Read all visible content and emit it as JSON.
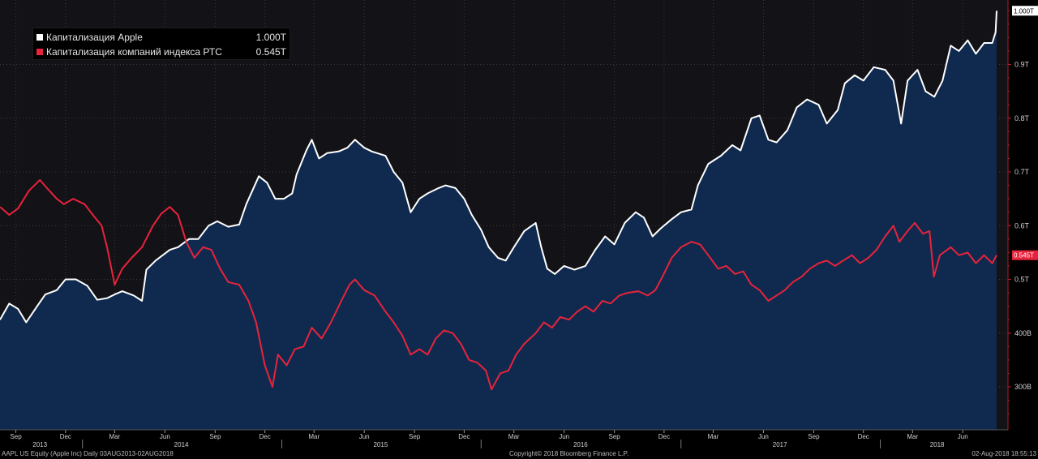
{
  "chart_data": {
    "type": "line",
    "title": "",
    "xlabel": "",
    "ylabel": "",
    "ylim": [
      220,
      1020
    ],
    "yticks": [
      {
        "value": 300,
        "label": "300B"
      },
      {
        "value": 400,
        "label": "400B"
      },
      {
        "value": 500,
        "label": "0.5T"
      },
      {
        "value": 600,
        "label": "0.6T"
      },
      {
        "value": 700,
        "label": "0.7T"
      },
      {
        "value": 800,
        "label": "0.8T"
      },
      {
        "value": 900,
        "label": "0.9T"
      }
    ],
    "xlim": [
      "2013-08-03",
      "2018-08-02"
    ],
    "month_ticks": [
      {
        "date": "2013-09-01",
        "label": "Sep"
      },
      {
        "date": "2013-12-01",
        "label": "Dec"
      },
      {
        "date": "2014-03-01",
        "label": "Mar"
      },
      {
        "date": "2014-06-01",
        "label": "Jun"
      },
      {
        "date": "2014-09-01",
        "label": "Sep"
      },
      {
        "date": "2014-12-01",
        "label": "Dec"
      },
      {
        "date": "2015-03-01",
        "label": "Mar"
      },
      {
        "date": "2015-06-01",
        "label": "Jun"
      },
      {
        "date": "2015-09-01",
        "label": "Sep"
      },
      {
        "date": "2015-12-01",
        "label": "Dec"
      },
      {
        "date": "2016-03-01",
        "label": "Mar"
      },
      {
        "date": "2016-06-01",
        "label": "Jun"
      },
      {
        "date": "2016-09-01",
        "label": "Sep"
      },
      {
        "date": "2016-12-01",
        "label": "Dec"
      },
      {
        "date": "2017-03-01",
        "label": "Mar"
      },
      {
        "date": "2017-06-01",
        "label": "Jun"
      },
      {
        "date": "2017-09-01",
        "label": "Sep"
      },
      {
        "date": "2017-12-01",
        "label": "Dec"
      },
      {
        "date": "2018-03-01",
        "label": "Mar"
      },
      {
        "date": "2018-06-01",
        "label": "Jun"
      }
    ],
    "year_ticks": [
      {
        "date": "2013-10-15",
        "label": "2013"
      },
      {
        "date": "2014-07-01",
        "label": "2014"
      },
      {
        "date": "2015-07-01",
        "label": "2015"
      },
      {
        "date": "2016-07-01",
        "label": "2016"
      },
      {
        "date": "2017-07-01",
        "label": "2017"
      },
      {
        "date": "2018-04-15",
        "label": "2018"
      }
    ],
    "grid": true,
    "legend_position": "top-left",
    "series": [
      {
        "name": "Капитализация Apple",
        "last_value_label": "1.000T",
        "color": "#ffffff",
        "area_color": "#0f2a4e",
        "points": [
          [
            "2013-08-03",
            425
          ],
          [
            "2013-08-20",
            455
          ],
          [
            "2013-09-05",
            445
          ],
          [
            "2013-09-20",
            420
          ],
          [
            "2013-10-10",
            450
          ],
          [
            "2013-10-25",
            472
          ],
          [
            "2013-11-15",
            480
          ],
          [
            "2013-12-01",
            500
          ],
          [
            "2013-12-20",
            500
          ],
          [
            "2014-01-10",
            488
          ],
          [
            "2014-01-28",
            462
          ],
          [
            "2014-02-15",
            465
          ],
          [
            "2014-03-01",
            472
          ],
          [
            "2014-03-15",
            478
          ],
          [
            "2014-04-05",
            470
          ],
          [
            "2014-04-20",
            460
          ],
          [
            "2014-04-28",
            518
          ],
          [
            "2014-05-15",
            535
          ],
          [
            "2014-06-10",
            555
          ],
          [
            "2014-06-25",
            560
          ],
          [
            "2014-07-15",
            575
          ],
          [
            "2014-08-01",
            575
          ],
          [
            "2014-08-20",
            600
          ],
          [
            "2014-09-05",
            608
          ],
          [
            "2014-09-25",
            598
          ],
          [
            "2014-10-15",
            602
          ],
          [
            "2014-10-28",
            640
          ],
          [
            "2014-11-20",
            692
          ],
          [
            "2014-12-05",
            680
          ],
          [
            "2014-12-20",
            650
          ],
          [
            "2015-01-05",
            650
          ],
          [
            "2015-01-20",
            660
          ],
          [
            "2015-01-28",
            695
          ],
          [
            "2015-02-15",
            740
          ],
          [
            "2015-02-25",
            760
          ],
          [
            "2015-03-10",
            725
          ],
          [
            "2015-03-25",
            735
          ],
          [
            "2015-04-15",
            738
          ],
          [
            "2015-05-01",
            745
          ],
          [
            "2015-05-15",
            760
          ],
          [
            "2015-06-01",
            745
          ],
          [
            "2015-06-15",
            738
          ],
          [
            "2015-07-10",
            730
          ],
          [
            "2015-07-25",
            700
          ],
          [
            "2015-08-10",
            680
          ],
          [
            "2015-08-25",
            625
          ],
          [
            "2015-09-10",
            650
          ],
          [
            "2015-09-25",
            660
          ],
          [
            "2015-10-15",
            670
          ],
          [
            "2015-10-28",
            675
          ],
          [
            "2015-11-15",
            670
          ],
          [
            "2015-12-01",
            650
          ],
          [
            "2015-12-15",
            620
          ],
          [
            "2016-01-01",
            592
          ],
          [
            "2016-01-15",
            560
          ],
          [
            "2016-02-01",
            540
          ],
          [
            "2016-02-15",
            535
          ],
          [
            "2016-03-01",
            560
          ],
          [
            "2016-03-20",
            590
          ],
          [
            "2016-04-10",
            605
          ],
          [
            "2016-04-20",
            560
          ],
          [
            "2016-05-01",
            520
          ],
          [
            "2016-05-15",
            510
          ],
          [
            "2016-06-01",
            525
          ],
          [
            "2016-06-20",
            518
          ],
          [
            "2016-07-10",
            525
          ],
          [
            "2016-07-28",
            555
          ],
          [
            "2016-08-15",
            580
          ],
          [
            "2016-09-01",
            565
          ],
          [
            "2016-09-20",
            605
          ],
          [
            "2016-10-10",
            625
          ],
          [
            "2016-10-25",
            615
          ],
          [
            "2016-11-10",
            580
          ],
          [
            "2016-11-25",
            595
          ],
          [
            "2016-12-15",
            612
          ],
          [
            "2017-01-01",
            625
          ],
          [
            "2017-01-20",
            630
          ],
          [
            "2017-02-01",
            675
          ],
          [
            "2017-02-20",
            715
          ],
          [
            "2017-03-15",
            730
          ],
          [
            "2017-04-05",
            750
          ],
          [
            "2017-04-20",
            740
          ],
          [
            "2017-05-10",
            800
          ],
          [
            "2017-05-25",
            805
          ],
          [
            "2017-06-10",
            760
          ],
          [
            "2017-06-25",
            755
          ],
          [
            "2017-07-15",
            778
          ],
          [
            "2017-08-01",
            820
          ],
          [
            "2017-08-20",
            835
          ],
          [
            "2017-09-10",
            825
          ],
          [
            "2017-09-25",
            790
          ],
          [
            "2017-10-15",
            815
          ],
          [
            "2017-10-28",
            865
          ],
          [
            "2017-11-15",
            880
          ],
          [
            "2017-12-01",
            870
          ],
          [
            "2017-12-20",
            895
          ],
          [
            "2018-01-10",
            890
          ],
          [
            "2018-01-25",
            870
          ],
          [
            "2018-02-08",
            790
          ],
          [
            "2018-02-20",
            870
          ],
          [
            "2018-03-10",
            890
          ],
          [
            "2018-03-25",
            850
          ],
          [
            "2018-04-10",
            840
          ],
          [
            "2018-04-25",
            870
          ],
          [
            "2018-05-10",
            935
          ],
          [
            "2018-05-25",
            925
          ],
          [
            "2018-06-10",
            945
          ],
          [
            "2018-06-25",
            920
          ],
          [
            "2018-07-10",
            940
          ],
          [
            "2018-07-25",
            940
          ],
          [
            "2018-07-31",
            960
          ],
          [
            "2018-08-02",
            1000
          ]
        ]
      },
      {
        "name": "Капитализация компаний индекса РТС",
        "last_value_label": "0.545T",
        "color": "#e8233c",
        "points": [
          [
            "2013-08-03",
            635
          ],
          [
            "2013-08-20",
            620
          ],
          [
            "2013-09-05",
            632
          ],
          [
            "2013-09-25",
            665
          ],
          [
            "2013-10-15",
            685
          ],
          [
            "2013-10-28",
            670
          ],
          [
            "2013-11-15",
            650
          ],
          [
            "2013-11-28",
            640
          ],
          [
            "2013-12-15",
            650
          ],
          [
            "2014-01-05",
            640
          ],
          [
            "2014-01-20",
            620
          ],
          [
            "2014-02-05",
            600
          ],
          [
            "2014-02-15",
            560
          ],
          [
            "2014-03-01",
            490
          ],
          [
            "2014-03-15",
            520
          ],
          [
            "2014-04-01",
            540
          ],
          [
            "2014-04-20",
            560
          ],
          [
            "2014-05-10",
            600
          ],
          [
            "2014-05-25",
            622
          ],
          [
            "2014-06-10",
            635
          ],
          [
            "2014-06-25",
            620
          ],
          [
            "2014-07-10",
            570
          ],
          [
            "2014-07-25",
            540
          ],
          [
            "2014-08-10",
            560
          ],
          [
            "2014-08-25",
            555
          ],
          [
            "2014-09-10",
            520
          ],
          [
            "2014-09-25",
            495
          ],
          [
            "2014-10-15",
            490
          ],
          [
            "2014-11-01",
            460
          ],
          [
            "2014-11-15",
            420
          ],
          [
            "2014-12-01",
            340
          ],
          [
            "2014-12-15",
            300
          ],
          [
            "2014-12-25",
            360
          ],
          [
            "2015-01-10",
            340
          ],
          [
            "2015-01-25",
            370
          ],
          [
            "2015-02-10",
            375
          ],
          [
            "2015-02-25",
            410
          ],
          [
            "2015-03-15",
            390
          ],
          [
            "2015-04-01",
            420
          ],
          [
            "2015-04-20",
            460
          ],
          [
            "2015-05-05",
            490
          ],
          [
            "2015-05-15",
            500
          ],
          [
            "2015-06-01",
            480
          ],
          [
            "2015-06-20",
            470
          ],
          [
            "2015-07-10",
            440
          ],
          [
            "2015-07-25",
            420
          ],
          [
            "2015-08-10",
            395
          ],
          [
            "2015-08-25",
            360
          ],
          [
            "2015-09-10",
            370
          ],
          [
            "2015-09-25",
            360
          ],
          [
            "2015-10-10",
            390
          ],
          [
            "2015-10-25",
            405
          ],
          [
            "2015-11-10",
            400
          ],
          [
            "2015-11-25",
            380
          ],
          [
            "2015-12-10",
            350
          ],
          [
            "2015-12-25",
            345
          ],
          [
            "2016-01-10",
            330
          ],
          [
            "2016-01-20",
            295
          ],
          [
            "2016-02-05",
            325
          ],
          [
            "2016-02-20",
            330
          ],
          [
            "2016-03-05",
            360
          ],
          [
            "2016-03-20",
            380
          ],
          [
            "2016-04-10",
            400
          ],
          [
            "2016-04-25",
            420
          ],
          [
            "2016-05-10",
            410
          ],
          [
            "2016-05-25",
            430
          ],
          [
            "2016-06-10",
            425
          ],
          [
            "2016-06-25",
            440
          ],
          [
            "2016-07-10",
            450
          ],
          [
            "2016-07-25",
            440
          ],
          [
            "2016-08-10",
            460
          ],
          [
            "2016-08-25",
            455
          ],
          [
            "2016-09-10",
            470
          ],
          [
            "2016-09-25",
            475
          ],
          [
            "2016-10-15",
            478
          ],
          [
            "2016-11-01",
            470
          ],
          [
            "2016-11-15",
            480
          ],
          [
            "2016-11-28",
            505
          ],
          [
            "2016-12-15",
            540
          ],
          [
            "2017-01-01",
            560
          ],
          [
            "2017-01-20",
            570
          ],
          [
            "2017-02-05",
            565
          ],
          [
            "2017-02-20",
            545
          ],
          [
            "2017-03-10",
            520
          ],
          [
            "2017-03-25",
            525
          ],
          [
            "2017-04-10",
            510
          ],
          [
            "2017-04-25",
            515
          ],
          [
            "2017-05-10",
            490
          ],
          [
            "2017-05-25",
            480
          ],
          [
            "2017-06-10",
            460
          ],
          [
            "2017-06-25",
            470
          ],
          [
            "2017-07-10",
            480
          ],
          [
            "2017-07-25",
            495
          ],
          [
            "2017-08-10",
            505
          ],
          [
            "2017-08-25",
            520
          ],
          [
            "2017-09-10",
            530
          ],
          [
            "2017-09-25",
            535
          ],
          [
            "2017-10-10",
            525
          ],
          [
            "2017-10-25",
            535
          ],
          [
            "2017-11-10",
            545
          ],
          [
            "2017-11-25",
            530
          ],
          [
            "2017-12-10",
            540
          ],
          [
            "2017-12-25",
            555
          ],
          [
            "2018-01-10",
            580
          ],
          [
            "2018-01-25",
            600
          ],
          [
            "2018-02-05",
            570
          ],
          [
            "2018-02-20",
            590
          ],
          [
            "2018-03-05",
            605
          ],
          [
            "2018-03-20",
            585
          ],
          [
            "2018-04-01",
            590
          ],
          [
            "2018-04-09",
            505
          ],
          [
            "2018-04-20",
            545
          ],
          [
            "2018-05-10",
            560
          ],
          [
            "2018-05-25",
            545
          ],
          [
            "2018-06-10",
            550
          ],
          [
            "2018-06-25",
            530
          ],
          [
            "2018-07-10",
            545
          ],
          [
            "2018-07-25",
            530
          ],
          [
            "2018-08-02",
            545
          ]
        ]
      }
    ]
  },
  "legend": {
    "apple_label": "Капитализация Apple",
    "apple_value": "1.000T",
    "rts_label": "Капитализация компаний индекса РТС",
    "rts_value": "0.545T",
    "apple_color": "#ffffff",
    "rts_color": "#e8233c"
  },
  "footer": {
    "left": "AAPL US Equity (Apple Inc)  Daily 03AUG2013-02AUG2018",
    "center": "Copyright© 2018 Bloomberg Finance L.P.",
    "right": "02-Aug-2018 18:55:13"
  },
  "colors": {
    "background": "#000000",
    "plot_background": "#131217",
    "area_fill": "#0f2a4e",
    "grid": "#2a2a2a",
    "apple_line": "#ffffff",
    "rts_line": "#e8233c"
  }
}
